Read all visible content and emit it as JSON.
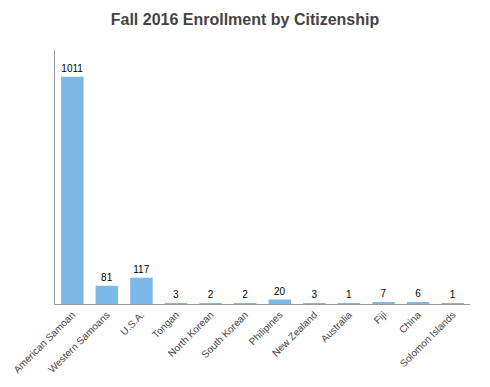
{
  "chart_data": {
    "type": "bar",
    "title": "Fall 2016 Enrollment by Citizenship",
    "categories": [
      "American Samoan",
      "Western Samoans",
      "U.S.A.",
      "Tongan",
      "North Korean",
      "South Korean",
      "Philipines",
      "New Zealand",
      "Australia",
      "Fiji",
      "China",
      "Solomon Islands"
    ],
    "values": [
      1011,
      81,
      117,
      3,
      2,
      2,
      20,
      3,
      1,
      7,
      6,
      1
    ],
    "color": "#7cb9e8",
    "ylim": [
      0,
      1130
    ],
    "grid": false,
    "data_labels": true,
    "tick_labels": "x"
  }
}
